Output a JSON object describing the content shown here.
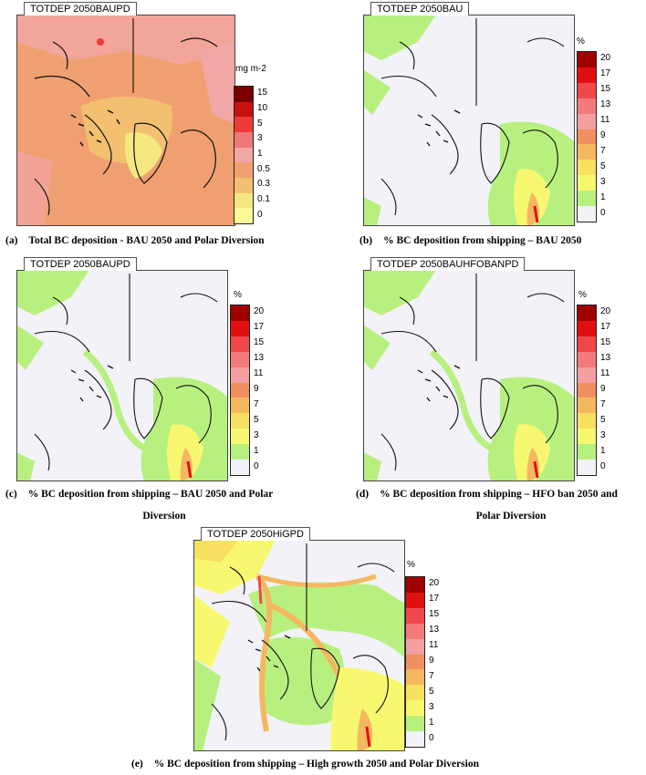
{
  "panels": [
    {
      "id": "a",
      "title": "TOTDEP 2050BAUPD",
      "unit": "mg m-2",
      "ticks": [
        "15",
        "10",
        "5",
        "3",
        "1",
        "0.5",
        "0.3",
        "0.1",
        "0"
      ],
      "colors": [
        "#7a0000",
        "#c81010",
        "#f03a3a",
        "#f07878",
        "#f2a6a6",
        "#f0a070",
        "#f2c070",
        "#f6e880",
        "#fafa98"
      ],
      "caption_label": "(a)",
      "caption": "Total BC deposition - BAU 2050 and Polar Diversion",
      "caption_line2": ""
    },
    {
      "id": "b",
      "title": "TOTDEP 2050BAU",
      "unit": "%",
      "ticks": [
        "20",
        "17",
        "15",
        "13",
        "11",
        "9",
        "7",
        "5",
        "3",
        "1",
        "0"
      ],
      "colors": [
        "#a00000",
        "#e01010",
        "#f04848",
        "#f47a7a",
        "#f4a0a0",
        "#f09060",
        "#f4b860",
        "#f8e060",
        "#f8f870",
        "#b8f080",
        "#f2f2f8"
      ],
      "caption_label": "(b)",
      "caption": "% BC deposition from shipping – BAU 2050",
      "caption_line2": ""
    },
    {
      "id": "c",
      "title": "TOTDEP 2050BAUPD",
      "unit": "%",
      "ticks": [
        "20",
        "17",
        "15",
        "13",
        "11",
        "9",
        "7",
        "5",
        "3",
        "1",
        "0"
      ],
      "colors": [
        "#a00000",
        "#e01010",
        "#f04848",
        "#f47a7a",
        "#f4a0a0",
        "#f09060",
        "#f4b860",
        "#f8e060",
        "#f8f870",
        "#b8f080",
        "#f2f2f8"
      ],
      "caption_label": "(c)",
      "caption": "% BC deposition from shipping – BAU 2050 and Polar",
      "caption_line2": "Diversion"
    },
    {
      "id": "d",
      "title": "TOTDEP 2050BAUHFOBANPD",
      "unit": "%",
      "ticks": [
        "20",
        "17",
        "15",
        "13",
        "11",
        "9",
        "7",
        "5",
        "3",
        "1",
        "0"
      ],
      "colors": [
        "#a00000",
        "#e01010",
        "#f04848",
        "#f47a7a",
        "#f4a0a0",
        "#f09060",
        "#f4b860",
        "#f8e060",
        "#f8f870",
        "#b8f080",
        "#f2f2f8"
      ],
      "caption_label": "(d)",
      "caption": "% BC deposition from shipping – HFO ban 2050 and",
      "caption_line2": "Polar Diversion"
    },
    {
      "id": "e",
      "title": "TOTDEP 2050HiGPD",
      "unit": "%",
      "ticks": [
        "20",
        "17",
        "15",
        "13",
        "11",
        "9",
        "7",
        "5",
        "3",
        "1",
        "0"
      ],
      "colors": [
        "#a00000",
        "#e01010",
        "#f04848",
        "#f47a7a",
        "#f4a0a0",
        "#f09060",
        "#f4b860",
        "#f8e060",
        "#f8f870",
        "#b8f080",
        "#f2f2f8"
      ],
      "caption_label": "(e)",
      "caption": "% BC deposition from shipping – High growth 2050 and Polar Diversion",
      "caption_line2": ""
    }
  ]
}
